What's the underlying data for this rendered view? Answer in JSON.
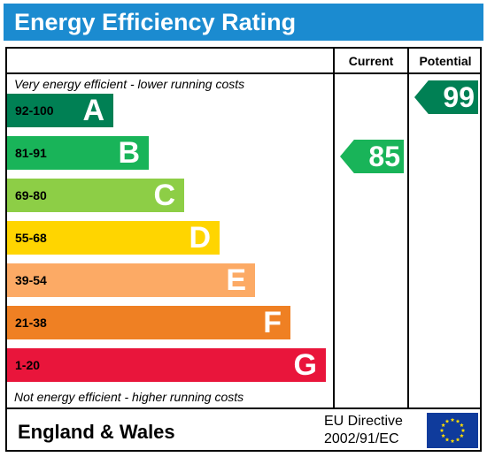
{
  "title": "Energy Efficiency Rating",
  "columns": {
    "current": "Current",
    "potential": "Potential"
  },
  "top_caption": "Very energy efficient - lower running costs",
  "bottom_caption": "Not energy efficient - higher running costs",
  "footer": {
    "region": "England & Wales",
    "directive_line1": "EU Directive",
    "directive_line2": "2002/91/EC",
    "flag_icon": "eu-flag-icon"
  },
  "chart_data": {
    "type": "bar",
    "categories": [
      "A",
      "B",
      "C",
      "D",
      "E",
      "F",
      "G"
    ],
    "bands": [
      {
        "letter": "A",
        "range": "92-100",
        "color": "#008054"
      },
      {
        "letter": "B",
        "range": "81-91",
        "color": "#19b459"
      },
      {
        "letter": "C",
        "range": "69-80",
        "color": "#8dce46"
      },
      {
        "letter": "D",
        "range": "55-68",
        "color": "#ffd500"
      },
      {
        "letter": "E",
        "range": "39-54",
        "color": "#fcaa65"
      },
      {
        "letter": "F",
        "range": "21-38",
        "color": "#ef8023"
      },
      {
        "letter": "G",
        "range": "1-20",
        "color": "#e9153b"
      }
    ],
    "current": {
      "value": 85,
      "band": "B",
      "color": "#19b459"
    },
    "potential": {
      "value": 99,
      "band": "A",
      "color": "#008054"
    }
  }
}
